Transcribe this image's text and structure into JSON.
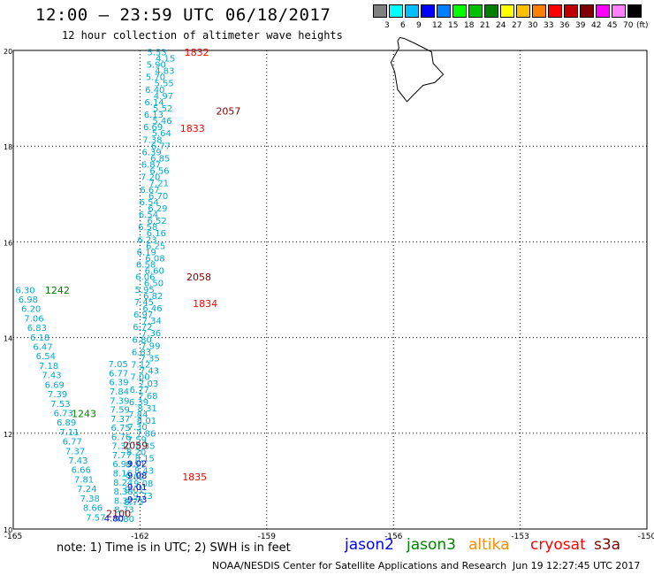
{
  "header": {
    "title": "12:00 – 23:59 UTC 06/18/2017",
    "subtitle": "12 hour collection of altimeter wave heights"
  },
  "legend": {
    "unit_label": "(ft)",
    "colors": [
      "#808080",
      "#00ffff",
      "#00bfff",
      "#0000ff",
      "#0080ff",
      "#00ff00",
      "#00c000",
      "#008000",
      "#ffff00",
      "#ffc000",
      "#ff8000",
      "#ff0000",
      "#c00000",
      "#800000",
      "#ff00ff",
      "#ff80ff",
      "#000000"
    ],
    "labels": [
      "3",
      "6",
      "9",
      "12",
      "15",
      "18",
      "21",
      "24",
      "27",
      "30",
      "33",
      "36",
      "39",
      "42",
      "45",
      "70"
    ]
  },
  "axes": {
    "lon_ticks": [
      "-165",
      "-162",
      "-159",
      "-156",
      "-153",
      "-150"
    ],
    "lat_ticks": [
      "20",
      "18",
      "16",
      "14",
      "12",
      "10"
    ]
  },
  "tracks": [
    {
      "name": "jason3-1242",
      "color": "#00aacc",
      "time_label": "1242",
      "time_color": "#008000",
      "values": [
        "6.30",
        "6.98",
        "6.20",
        "7.06",
        "6.83",
        "6.18",
        "6.47",
        "6.54",
        "7.18",
        "7.43",
        "6.69",
        "7.39",
        "7.53",
        "6.73",
        "6.89",
        "7.11",
        "6.77",
        "7.37",
        "7.43",
        "6.66",
        "7.81",
        "7.24",
        "7.38",
        "8.66",
        "7.57"
      ]
    },
    {
      "name": "jason3-1243",
      "color": "#00aacc",
      "time_label": "1243",
      "time_color": "#008000",
      "values": [
        "7.05",
        "6.77",
        "6.39",
        "7.84",
        "7.39",
        "7.59",
        "7.37",
        "6.75",
        "6.76",
        "7.30",
        "7.77",
        "6.93",
        "8.16",
        "8.24",
        "8.38",
        "8.32",
        "8.73",
        "4.80"
      ]
    },
    {
      "name": "cryosat-1832-1835",
      "color": "#00aacc",
      "time_labels": [
        "1832",
        "1833",
        "1834",
        "1835"
      ],
      "time_color": "#ff0000",
      "values": [
        "5.53",
        "4.15",
        "5.90",
        "4.83",
        "5.70",
        "5.55",
        "6.40",
        "4.97",
        "6.14",
        "5.52",
        "6.13",
        "5.46",
        "6.69",
        "5.64",
        "7.38",
        "6.77",
        "6.39",
        "6.85",
        "6.87",
        "6.56",
        "7.20",
        "7.21",
        "6.67",
        "6.70",
        "6.54",
        "6.29",
        "6.54",
        "6.52",
        "6.58",
        "6.16",
        "6.23",
        "6.25",
        "6.19",
        "6.08",
        "6.58",
        "6.60",
        "6.06",
        "6.50",
        "5.95",
        "6.82",
        "7.45",
        "6.46",
        "6.97",
        "7.34",
        "6.72",
        "7.36",
        "6.80",
        "7.99",
        "6.83",
        "7.35",
        "7.12",
        "7.43",
        "7.00",
        "7.03",
        "6.77",
        "7.68",
        "6.39",
        "8.31",
        "7.84",
        "8.01",
        "7.30",
        "7.86",
        "7.59",
        "8.35",
        "8.20",
        "8.15",
        "8.51",
        "8.43",
        "9.02",
        "9.08",
        "9.01",
        "9.73",
        "8.73"
      ]
    },
    {
      "name": "s3a-2057-2100",
      "color": "#800000",
      "time_labels": [
        "2057",
        "2058",
        "2059",
        "2100"
      ],
      "time_color": "#800000"
    },
    {
      "name": "jason2-low-values",
      "color": "#0000cc",
      "values": [
        "9.02",
        "9.08",
        "9.01",
        "9.73",
        "4.80"
      ]
    }
  ],
  "footer": {
    "note": "note: 1) Time is in UTC; 2) SWH is in feet",
    "satellites": [
      {
        "name": "jason2",
        "color": "#0000ff"
      },
      {
        "name": "jason3",
        "color": "#008000"
      },
      {
        "name": "altika",
        "color": "#ff8c00"
      },
      {
        "name": "cryosat",
        "color": "#ff0000"
      },
      {
        "name": "s3a",
        "color": "#800000"
      }
    ],
    "credit": "NOAA/NESDIS Center for Satellite Applications and Research",
    "timestamp": "Jun 19 12:27:45 UTC 2017"
  }
}
